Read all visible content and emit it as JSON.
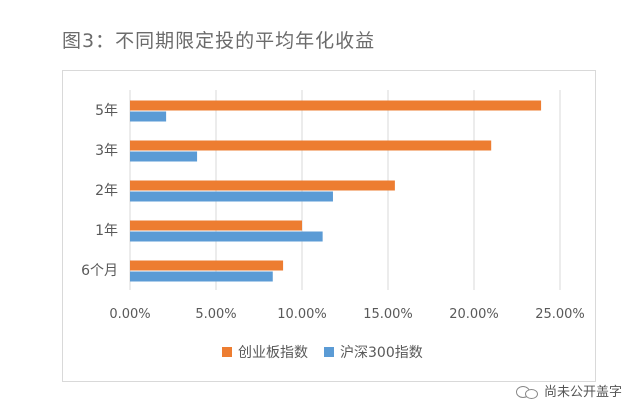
{
  "title": "图3：不同期限定投的平均年化收益",
  "watermark": {
    "text": "尚未公开盖字",
    "logo_icon": "wechat-icon"
  },
  "chart_data": {
    "type": "bar",
    "orientation": "horizontal",
    "categories": [
      "5年",
      "3年",
      "2年",
      "1年",
      "6个月"
    ],
    "series": [
      {
        "name": "创业板指数",
        "color": "#ED7D31",
        "values": [
          23.9,
          21.0,
          15.4,
          10.0,
          8.9
        ]
      },
      {
        "name": "沪深300指数",
        "color": "#5B9BD5",
        "values": [
          2.1,
          3.9,
          11.8,
          11.2,
          8.3
        ]
      }
    ],
    "xlim": [
      0,
      25
    ],
    "xticks": [
      0,
      5,
      10,
      15,
      20,
      25
    ],
    "xtick_labels": [
      "0.00%",
      "5.00%",
      "10.00%",
      "15.00%",
      "20.00%",
      "25.00%"
    ],
    "xlabel": "",
    "ylabel": "",
    "gridlines": true,
    "legend_position": "bottom"
  }
}
